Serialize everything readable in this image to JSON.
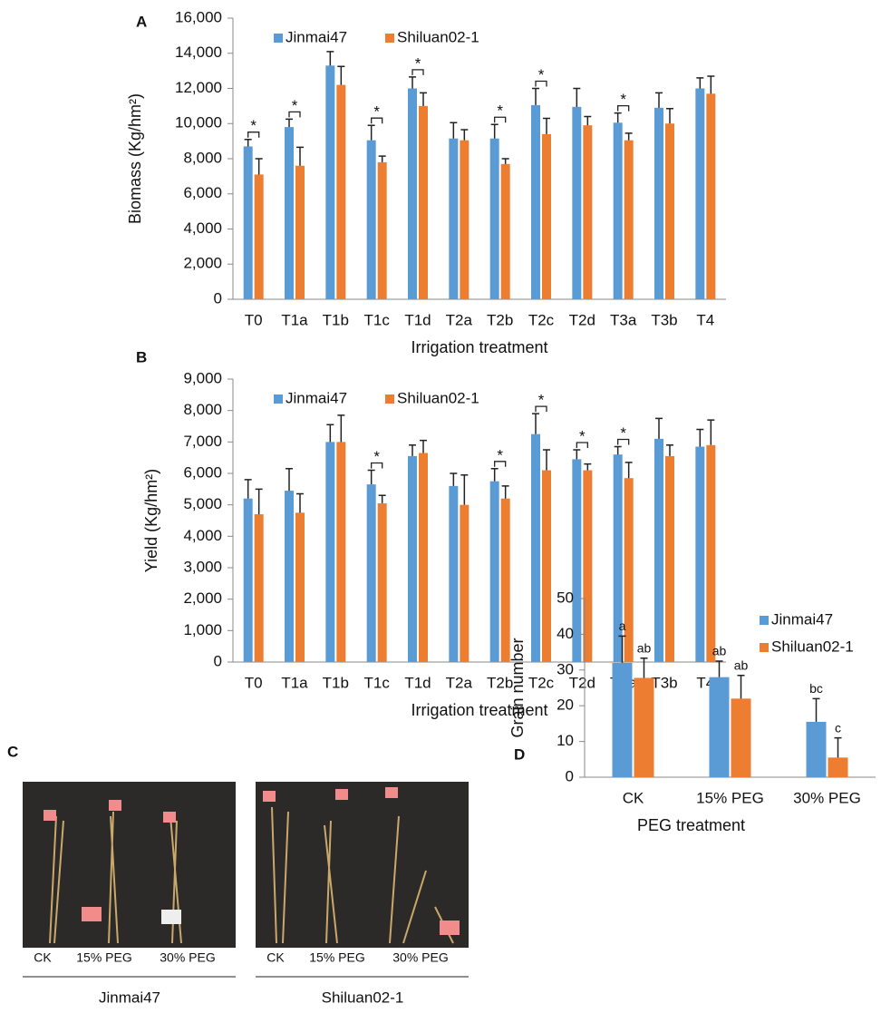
{
  "chart_data": [
    {
      "type": "bar",
      "panel": "A",
      "x_label": "Irrigation treatment",
      "y_label": "Biomass (Kg/hm²)",
      "categories": [
        "T0",
        "T1a",
        "T1b",
        "T1c",
        "T1d",
        "T2a",
        "T2b",
        "T2c",
        "T2d",
        "T3a",
        "T3b",
        "T4"
      ],
      "series": [
        {
          "name": "Jinmai47",
          "color": "#5b9bd5",
          "values": [
            8700,
            9800,
            13300,
            9050,
            12000,
            9150,
            9150,
            11050,
            10950,
            10050,
            10900,
            12000
          ],
          "errors": [
            400,
            450,
            800,
            850,
            650,
            900,
            800,
            950,
            1050,
            550,
            850,
            600
          ]
        },
        {
          "name": "Shiluan02-1",
          "color": "#ed7d31",
          "values": [
            7100,
            7600,
            12200,
            7800,
            11000,
            9050,
            7700,
            9400,
            9900,
            9050,
            10000,
            11700
          ],
          "errors": [
            900,
            1050,
            1050,
            350,
            750,
            600,
            300,
            900,
            500,
            400,
            850,
            1000
          ]
        }
      ],
      "significance": [
        "*",
        "*",
        null,
        "*",
        "*",
        null,
        "*",
        "*",
        null,
        "*",
        null,
        null
      ],
      "ylim": [
        0,
        16000
      ],
      "yticks": [
        0,
        {
          "value": 2000,
          "label": "2,000"
        },
        {
          "value": 4000,
          "label": "4,000"
        },
        {
          "value": 6000,
          "label": "6,000"
        },
        {
          "value": 8000,
          "label": "8,000"
        },
        {
          "value": 10000,
          "label": "10,000"
        },
        {
          "value": 12000,
          "label": "12,000"
        },
        {
          "value": 14000,
          "label": "14,000"
        },
        {
          "value": 16000,
          "label": "16,000"
        }
      ],
      "legend": "upper left"
    },
    {
      "type": "bar",
      "panel": "B",
      "x_label": "Irrigation treatment",
      "y_label": "Yield (Kg/hm²)",
      "categories": [
        "T0",
        "T1a",
        "T1b",
        "T1c",
        "T1d",
        "T2a",
        "T2b",
        "T2c",
        "T2d",
        "T3a",
        "T3b",
        "T4"
      ],
      "series": [
        {
          "name": "Jinmai47",
          "color": "#5b9bd5",
          "values": [
            5200,
            5450,
            7000,
            5650,
            6550,
            5600,
            5750,
            7250,
            6450,
            6600,
            7100,
            6850
          ],
          "errors": [
            600,
            700,
            550,
            450,
            350,
            400,
            400,
            650,
            300,
            250,
            650,
            550
          ]
        },
        {
          "name": "Shiluan02-1",
          "color": "#ed7d31",
          "values": [
            4700,
            4750,
            7000,
            5050,
            6650,
            5000,
            5200,
            6100,
            6100,
            5850,
            6550,
            6900
          ],
          "errors": [
            800,
            600,
            850,
            250,
            400,
            950,
            400,
            650,
            200,
            500,
            350,
            800
          ]
        }
      ],
      "significance": [
        null,
        null,
        null,
        "*",
        null,
        null,
        "*",
        "*",
        "*",
        "*",
        null,
        null
      ],
      "ylim": [
        0,
        9000
      ],
      "yticks": [
        0,
        {
          "value": 1000,
          "label": "1,000"
        },
        {
          "value": 2000,
          "label": "2,000"
        },
        {
          "value": 3000,
          "label": "3,000"
        },
        {
          "value": 4000,
          "label": "4,000"
        },
        {
          "value": 5000,
          "label": "5,000"
        },
        {
          "value": 6000,
          "label": "6,000"
        },
        {
          "value": 7000,
          "label": "7,000"
        },
        {
          "value": 8000,
          "label": "8,000"
        },
        {
          "value": 9000,
          "label": "9,000"
        }
      ],
      "legend": "upper left"
    },
    {
      "type": "bar",
      "panel": "D",
      "x_label": "PEG treatment",
      "y_label": "Grain number",
      "categories": [
        "CK",
        "15% PEG",
        "30% PEG"
      ],
      "series": [
        {
          "name": "Jinmai47",
          "color": "#5b9bd5",
          "values": [
            32,
            28,
            15.5
          ],
          "errors": [
            7.5,
            4.5,
            6.5
          ],
          "letters": [
            "a",
            "ab",
            "bc"
          ]
        },
        {
          "name": "Shiluan02-1",
          "color": "#ed7d31",
          "values": [
            27.8,
            22,
            5.5
          ],
          "errors": [
            5.5,
            6.5,
            5.5
          ],
          "letters": [
            "ab",
            "ab",
            "c"
          ]
        }
      ],
      "ylim": [
        0,
        50
      ],
      "yticks": [
        0,
        10,
        20,
        30,
        40,
        50
      ],
      "legend": "upper right"
    }
  ],
  "photo_panel": {
    "panel": "C",
    "images": [
      {
        "labels": [
          "CK",
          "15% PEG",
          "30% PEG"
        ],
        "name": "Jinmai47"
      },
      {
        "labels": [
          "CK",
          "15% PEG",
          "30% PEG"
        ],
        "name": "Shiluan02-1"
      }
    ]
  }
}
